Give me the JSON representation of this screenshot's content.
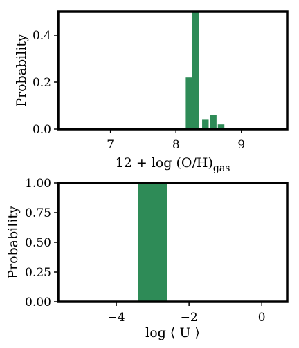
{
  "chart_data": [
    {
      "type": "bar",
      "xlabel": "12 + log (O/H)",
      "xlabel_subscript": "gas",
      "ylabel": "Probability",
      "xlim": [
        6.2,
        9.7
      ],
      "ylim": [
        0,
        0.5
      ],
      "xticks": [
        7,
        8,
        9
      ],
      "yticks": [
        0.0,
        0.2,
        0.4
      ],
      "ytick_labels": [
        "0.0",
        "0.2",
        "0.4"
      ],
      "grid": false,
      "bar_color": "#2e8b57",
      "bars": [
        {
          "x": 8.2,
          "width": 0.1,
          "value": 0.22
        },
        {
          "x": 8.3,
          "width": 0.1,
          "value": 0.5
        },
        {
          "x": 8.45,
          "width": 0.1,
          "value": 0.04
        },
        {
          "x": 8.57,
          "width": 0.1,
          "value": 0.06
        },
        {
          "x": 8.69,
          "width": 0.1,
          "value": 0.02
        }
      ]
    },
    {
      "type": "bar",
      "xlabel": "log ⟨ U ⟩",
      "ylabel": "Probability",
      "xlim": [
        -5.6,
        0.7
      ],
      "ylim": [
        0,
        1.0
      ],
      "xticks": [
        -4,
        -2,
        0
      ],
      "xtick_labels": [
        "−4",
        "−2",
        "0"
      ],
      "yticks": [
        0.0,
        0.25,
        0.5,
        0.75,
        1.0
      ],
      "ytick_labels": [
        "0.00",
        "0.25",
        "0.50",
        "0.75",
        "1.00"
      ],
      "grid": false,
      "bar_color": "#2e8b57",
      "bars": [
        {
          "x": -3.0,
          "width": 0.8,
          "value": 1.0
        }
      ]
    }
  ]
}
